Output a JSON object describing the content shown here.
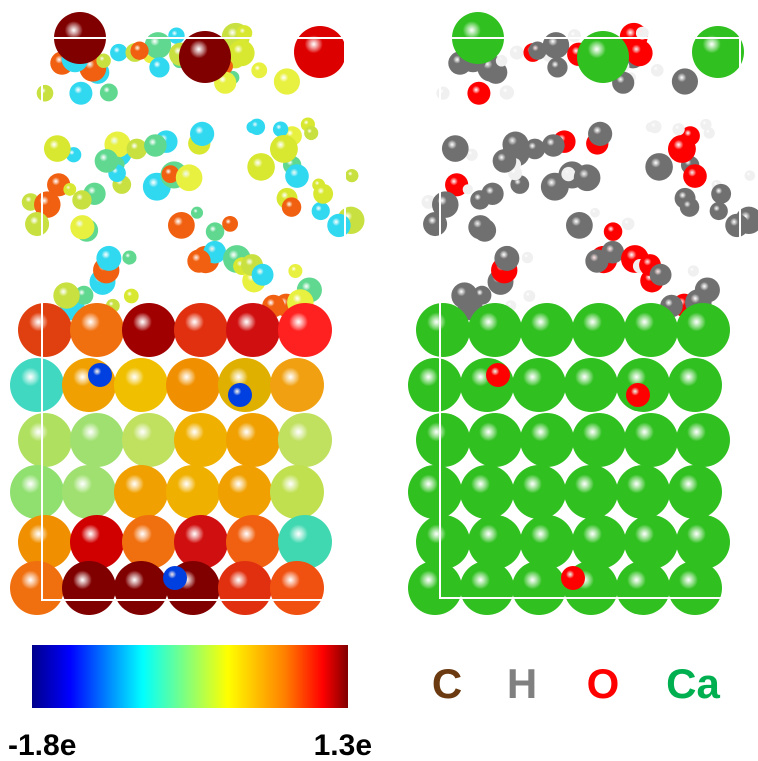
{
  "colorbar": {
    "min_label": "-1.8e",
    "max_label": "1.3e"
  },
  "legend": {
    "items": [
      {
        "label": "C",
        "color": "#6b3a10"
      },
      {
        "label": "H",
        "color": "#808080"
      },
      {
        "label": "O",
        "color": "#ff0000"
      },
      {
        "label": "Ca",
        "color": "#00b050"
      }
    ]
  }
}
